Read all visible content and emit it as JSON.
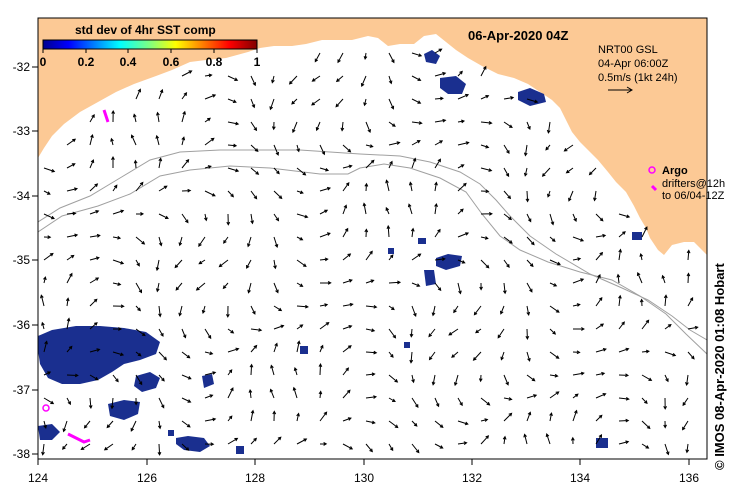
{
  "map": {
    "title": "06-Apr-2020 04Z",
    "colorbar": {
      "label": "std dev of 4hr SST comp",
      "ticks": [
        "0",
        "0.2",
        "0.4",
        "0.6",
        "0.8",
        "1"
      ]
    },
    "legend": {
      "model": "NRT00 GSL",
      "time": "04-Apr 06:00Z",
      "scale": "0.5m/s (1kt 24h)"
    },
    "argo": {
      "label": "Argo",
      "drifters_line1": "drifters@12h",
      "drifters_line2": "to 06/04-12Z"
    },
    "lon_ticks": [
      "124",
      "126",
      "128",
      "130",
      "132",
      "134",
      "136"
    ],
    "lat_ticks": [
      "-32",
      "-33",
      "-34",
      "-35",
      "-36",
      "-37",
      "-38"
    ],
    "credit": "© IMOS 08-Apr-2020 01:08 Hobart",
    "colors": {
      "land": "#fcc995",
      "ocean": "#ffffff",
      "sst_patch": "#1a2f8f",
      "argo": "#ff00ff",
      "shelf_line": "#a0a0a0"
    }
  }
}
